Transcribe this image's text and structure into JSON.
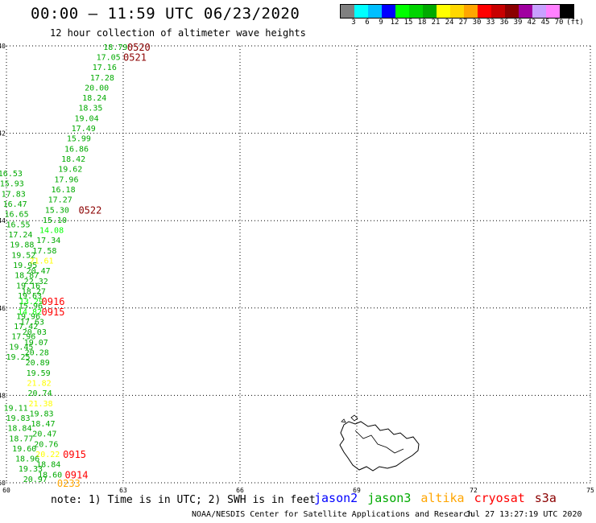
{
  "title": "00:00 – 11:59 UTC 06/23/2020",
  "subtitle": "12 hour collection of altimeter wave heights",
  "colorbar": {
    "unit": "(ft)",
    "colors": [
      "#808080",
      "#00ffff",
      "#00bfff",
      "#0000ff",
      "#00ff00",
      "#00d400",
      "#00aa00",
      "#ffff00",
      "#ffd700",
      "#ffa500",
      "#ff0000",
      "#c80000",
      "#8b0000",
      "#a000a0",
      "#c8a0ff",
      "#ff80ff",
      "#000000"
    ],
    "labels": [
      "3",
      "6",
      "9",
      "12",
      "15",
      "18",
      "21",
      "24",
      "27",
      "30",
      "33",
      "36",
      "39",
      "42",
      "45",
      "70"
    ]
  },
  "note": "note: 1) Time is in UTC; 2) SWH is in feet",
  "satellites": [
    {
      "name": "jason2",
      "color": "#0000ff"
    },
    {
      "name": "jason3",
      "color": "#00aa00"
    },
    {
      "name": "altika",
      "color": "#ffa500"
    },
    {
      "name": "cryosat",
      "color": "#ff0000"
    },
    {
      "name": "s3a",
      "color": "#8b0000"
    }
  ],
  "credit": "NOAA/NESDIS Center for Satellite Applications and Research",
  "timestamp": "Jul 27 13:27:19 UTC 2020",
  "chart_data": {
    "type": "scatter",
    "title": "00:00 – 11:59 UTC 06/23/2020",
    "xlim": [
      60,
      75
    ],
    "ylim": [
      -50,
      -40
    ],
    "x_ticks": [
      60,
      63,
      66,
      69,
      72,
      75
    ],
    "y_ticks": [
      -40,
      -42,
      -44,
      -46,
      -48,
      -50
    ],
    "grid": true,
    "points": [
      {
        "x": 62.8,
        "y": -40.02,
        "label": "18.79",
        "color": "#00aa00"
      },
      {
        "x": 62.62,
        "y": -40.25,
        "label": "17.05",
        "color": "#00aa00"
      },
      {
        "x": 62.52,
        "y": -40.48,
        "label": "17.16",
        "color": "#00aa00"
      },
      {
        "x": 62.46,
        "y": -40.72,
        "label": "17.28",
        "color": "#00aa00"
      },
      {
        "x": 62.32,
        "y": -40.95,
        "label": "20.00",
        "color": "#00aa00"
      },
      {
        "x": 62.26,
        "y": -41.18,
        "label": "18.24",
        "color": "#00aa00"
      },
      {
        "x": 62.16,
        "y": -41.41,
        "label": "18.35",
        "color": "#00aa00"
      },
      {
        "x": 62.06,
        "y": -41.65,
        "label": "19.04",
        "color": "#00aa00"
      },
      {
        "x": 61.98,
        "y": -41.88,
        "label": "17.49",
        "color": "#00aa00"
      },
      {
        "x": 61.86,
        "y": -42.11,
        "label": "15.99",
        "color": "#00aa00"
      },
      {
        "x": 61.8,
        "y": -42.35,
        "label": "16.86",
        "color": "#00aa00"
      },
      {
        "x": 61.72,
        "y": -42.58,
        "label": "18.42",
        "color": "#00aa00"
      },
      {
        "x": 61.64,
        "y": -42.81,
        "label": "19.62",
        "color": "#00aa00"
      },
      {
        "x": 61.54,
        "y": -43.05,
        "label": "17.96",
        "color": "#00aa00"
      },
      {
        "x": 61.46,
        "y": -43.28,
        "label": "16.18",
        "color": "#00aa00"
      },
      {
        "x": 61.38,
        "y": -43.51,
        "label": "17.27",
        "color": "#00aa00"
      },
      {
        "x": 61.3,
        "y": -43.75,
        "label": "15.30",
        "color": "#00aa00"
      },
      {
        "x": 61.24,
        "y": -43.98,
        "label": "15.10",
        "color": "#00aa00"
      },
      {
        "x": 61.16,
        "y": -44.21,
        "label": "14.08",
        "color": "#00ff00"
      },
      {
        "x": 61.08,
        "y": -44.44,
        "label": "17.34",
        "color": "#00aa00"
      },
      {
        "x": 60.98,
        "y": -44.68,
        "label": "17.58",
        "color": "#00aa00"
      },
      {
        "x": 60.9,
        "y": -44.91,
        "label": "21.61",
        "color": "#ffff00"
      },
      {
        "x": 60.82,
        "y": -45.14,
        "label": "20.47",
        "color": "#00aa00"
      },
      {
        "x": 60.76,
        "y": -45.38,
        "label": "22.32",
        "color": "#00aa00"
      },
      {
        "x": 60.7,
        "y": -45.61,
        "label": "18.27",
        "color": "#00aa00"
      },
      {
        "x": 60.64,
        "y": -45.84,
        "label": "13.29",
        "color": "#00ff00"
      },
      {
        "x": 60.6,
        "y": -46.08,
        "label": "14.82",
        "color": "#00ff00"
      },
      {
        "x": 60.66,
        "y": -46.31,
        "label": "17.63",
        "color": "#00aa00"
      },
      {
        "x": 60.72,
        "y": -46.54,
        "label": "20.03",
        "color": "#00aa00"
      },
      {
        "x": 60.76,
        "y": -46.78,
        "label": "19.07",
        "color": "#00aa00"
      },
      {
        "x": 60.78,
        "y": -47.01,
        "label": "20.28",
        "color": "#00aa00"
      },
      {
        "x": 60.8,
        "y": -47.24,
        "label": "20.89",
        "color": "#00aa00"
      },
      {
        "x": 60.82,
        "y": -47.48,
        "label": "19.59",
        "color": "#00aa00"
      },
      {
        "x": 60.84,
        "y": -47.71,
        "label": "21.82",
        "color": "#ffff00"
      },
      {
        "x": 60.86,
        "y": -47.94,
        "label": "20.74",
        "color": "#00aa00"
      },
      {
        "x": 60.88,
        "y": -48.18,
        "label": "21.38",
        "color": "#ffff00"
      },
      {
        "x": 60.9,
        "y": -48.41,
        "label": "19.83",
        "color": "#00aa00"
      },
      {
        "x": 60.94,
        "y": -48.64,
        "label": "18.47",
        "color": "#00aa00"
      },
      {
        "x": 60.98,
        "y": -48.87,
        "label": "20.47",
        "color": "#00aa00"
      },
      {
        "x": 61.02,
        "y": -49.11,
        "label": "20.76",
        "color": "#00aa00"
      },
      {
        "x": 61.06,
        "y": -49.34,
        "label": "20.22",
        "color": "#ffff00"
      },
      {
        "x": 61.08,
        "y": -49.57,
        "label": "18.84",
        "color": "#00aa00"
      },
      {
        "x": 61.12,
        "y": -49.81,
        "label": "18.60",
        "color": "#00aa00"
      },
      {
        "x": 60.1,
        "y": -42.91,
        "label": "16.53",
        "color": "#00aa00"
      },
      {
        "x": 60.14,
        "y": -43.14,
        "label": "15.93",
        "color": "#00aa00"
      },
      {
        "x": 60.18,
        "y": -43.38,
        "label": "17.83",
        "color": "#00aa00"
      },
      {
        "x": 60.22,
        "y": -43.61,
        "label": "16.47",
        "color": "#00aa00"
      },
      {
        "x": 60.26,
        "y": -43.84,
        "label": "16.65",
        "color": "#00aa00"
      },
      {
        "x": 60.3,
        "y": -44.08,
        "label": "16.55",
        "color": "#00aa00"
      },
      {
        "x": 60.36,
        "y": -44.31,
        "label": "17.24",
        "color": "#00aa00"
      },
      {
        "x": 60.4,
        "y": -44.54,
        "label": "19.88",
        "color": "#00aa00"
      },
      {
        "x": 60.44,
        "y": -44.78,
        "label": "19.52",
        "color": "#00aa00"
      },
      {
        "x": 60.48,
        "y": -45.01,
        "label": "19.95",
        "color": "#00aa00"
      },
      {
        "x": 60.52,
        "y": -45.24,
        "label": "18.87",
        "color": "#00aa00"
      },
      {
        "x": 60.56,
        "y": -45.48,
        "label": "19.16",
        "color": "#00aa00"
      },
      {
        "x": 60.6,
        "y": -45.71,
        "label": "19.63",
        "color": "#00aa00"
      },
      {
        "x": 60.62,
        "y": -45.94,
        "label": "15.96",
        "color": "#00aa00"
      },
      {
        "x": 60.56,
        "y": -46.18,
        "label": "19.96",
        "color": "#00aa00"
      },
      {
        "x": 60.5,
        "y": -46.41,
        "label": "17.42",
        "color": "#00aa00"
      },
      {
        "x": 60.44,
        "y": -46.64,
        "label": "17.96",
        "color": "#00aa00"
      },
      {
        "x": 60.38,
        "y": -46.88,
        "label": "19.45",
        "color": "#00aa00"
      },
      {
        "x": 60.3,
        "y": -47.11,
        "label": "19.25",
        "color": "#00aa00"
      },
      {
        "x": 60.24,
        "y": -48.28,
        "label": "19.11",
        "color": "#00aa00"
      },
      {
        "x": 60.3,
        "y": -48.51,
        "label": "19.83",
        "color": "#00aa00"
      },
      {
        "x": 60.34,
        "y": -48.74,
        "label": "18.84",
        "color": "#00aa00"
      },
      {
        "x": 60.38,
        "y": -48.98,
        "label": "18.77",
        "color": "#00aa00"
      },
      {
        "x": 60.46,
        "y": -49.21,
        "label": "19.60",
        "color": "#00aa00"
      },
      {
        "x": 60.54,
        "y": -49.44,
        "label": "18.96",
        "color": "#00aa00"
      },
      {
        "x": 60.62,
        "y": -49.67,
        "label": "19.33",
        "color": "#00aa00"
      },
      {
        "x": 60.74,
        "y": -49.91,
        "label": "20.97",
        "color": "#00aa00"
      }
    ],
    "time_labels": [
      {
        "x": 63.4,
        "y": -40.02,
        "label": "0520",
        "color": "#8b0000"
      },
      {
        "x": 63.3,
        "y": -40.25,
        "label": "0521",
        "color": "#8b0000"
      },
      {
        "x": 62.15,
        "y": -43.75,
        "label": "0522",
        "color": "#8b0000"
      },
      {
        "x": 61.2,
        "y": -45.84,
        "label": "0916",
        "color": "#ff0000"
      },
      {
        "x": 61.2,
        "y": -46.08,
        "label": "0915",
        "color": "#ff0000"
      },
      {
        "x": 61.75,
        "y": -49.34,
        "label": "0915",
        "color": "#ff0000"
      },
      {
        "x": 61.8,
        "y": -49.81,
        "label": "0914",
        "color": "#ff0000"
      },
      {
        "x": 61.6,
        "y": -50.0,
        "label": "0233",
        "color": "#ffa500"
      }
    ]
  }
}
